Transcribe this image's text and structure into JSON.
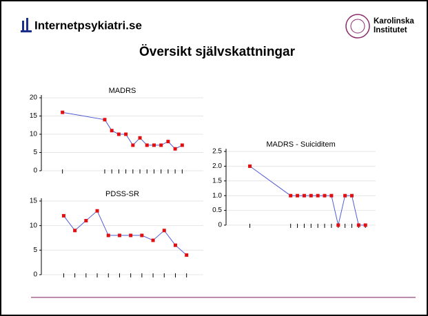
{
  "header": {
    "logo": "Internetpsykiatri.se",
    "institute": [
      "Karolinska",
      "Institutet"
    ],
    "title": "Översikt självskattningar"
  },
  "chart_data": [
    {
      "type": "line",
      "title": "MADRS",
      "x": [
        0,
        6,
        7,
        8,
        9,
        10,
        11,
        12,
        13,
        14,
        15,
        16,
        17
      ],
      "series": [
        {
          "color": "#4f5bd5",
          "marker_color": "#e01010",
          "values": [
            16,
            14,
            11,
            10,
            10,
            7,
            9,
            7,
            7,
            7,
            8,
            6,
            7
          ]
        }
      ],
      "xlim": [
        -3,
        20
      ],
      "ylim": [
        0,
        20
      ],
      "yticks": [
        0,
        5,
        10,
        15,
        20
      ],
      "grid": true
    },
    {
      "type": "line",
      "title": "PDSS-SR",
      "x": [
        0,
        1,
        2,
        3,
        4,
        5,
        6,
        7,
        8,
        9,
        10,
        11
      ],
      "series": [
        {
          "color": "#4f5bd5",
          "marker_color": "#e01010",
          "values": [
            12,
            9,
            11,
            13,
            8,
            8,
            8,
            8,
            7,
            9,
            6,
            4
          ]
        }
      ],
      "xlim": [
        -2,
        12.5
      ],
      "ylim": [
        0,
        15
      ],
      "yticks": [
        0,
        5,
        10,
        15
      ],
      "grid": true
    },
    {
      "type": "line",
      "title": "MADRS - Suiciditem",
      "x": [
        0,
        6,
        7,
        8,
        9,
        10,
        11,
        12,
        13,
        14,
        15,
        16,
        17
      ],
      "series": [
        {
          "color": "#4f5bd5",
          "marker_color": "#e01010",
          "values": [
            2,
            1,
            1,
            1,
            1,
            1,
            1,
            1,
            0,
            1,
            1,
            0,
            0
          ]
        }
      ],
      "xlim": [
        -3.5,
        18.5
      ],
      "ylim": [
        0,
        2.5
      ],
      "yticks": [
        0,
        0.5,
        {
          "value": 1,
          "label": "1.0"
        },
        1.5,
        {
          "value": 2,
          "label": "2.0"
        },
        2.5
      ],
      "grid": true
    }
  ]
}
